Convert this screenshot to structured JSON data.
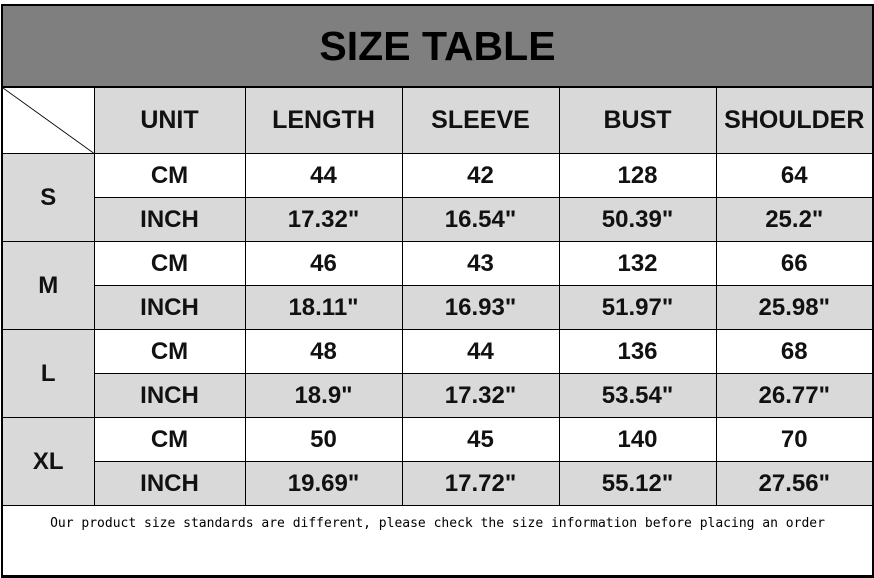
{
  "title": "SIZE TABLE",
  "headers": [
    "UNIT",
    "LENGTH",
    "SLEEVE",
    "BUST",
    "SHOULDER"
  ],
  "sizes": [
    {
      "size": "S",
      "cm": {
        "unit": "CM",
        "length": "44",
        "sleeve": "42",
        "bust": "128",
        "shoulder": "64"
      },
      "inch": {
        "unit": "INCH",
        "length": "17.32\"",
        "sleeve": "16.54\"",
        "bust": "50.39\"",
        "shoulder": "25.2\""
      }
    },
    {
      "size": "M",
      "cm": {
        "unit": "CM",
        "length": "46",
        "sleeve": "43",
        "bust": "132",
        "shoulder": "66"
      },
      "inch": {
        "unit": "INCH",
        "length": "18.11\"",
        "sleeve": "16.93\"",
        "bust": "51.97\"",
        "shoulder": "25.98\""
      }
    },
    {
      "size": "L",
      "cm": {
        "unit": "CM",
        "length": "48",
        "sleeve": "44",
        "bust": "136",
        "shoulder": "68"
      },
      "inch": {
        "unit": "INCH",
        "length": "18.9\"",
        "sleeve": "17.32\"",
        "bust": "53.54\"",
        "shoulder": "26.77\""
      }
    },
    {
      "size": "XL",
      "cm": {
        "unit": "CM",
        "length": "50",
        "sleeve": "45",
        "bust": "140",
        "shoulder": "70"
      },
      "inch": {
        "unit": "INCH",
        "length": "19.69\"",
        "sleeve": "17.72\"",
        "bust": "55.12\"",
        "shoulder": "27.56\""
      }
    }
  ],
  "note": "Our product size standards are different, please check the size information before placing an order"
}
